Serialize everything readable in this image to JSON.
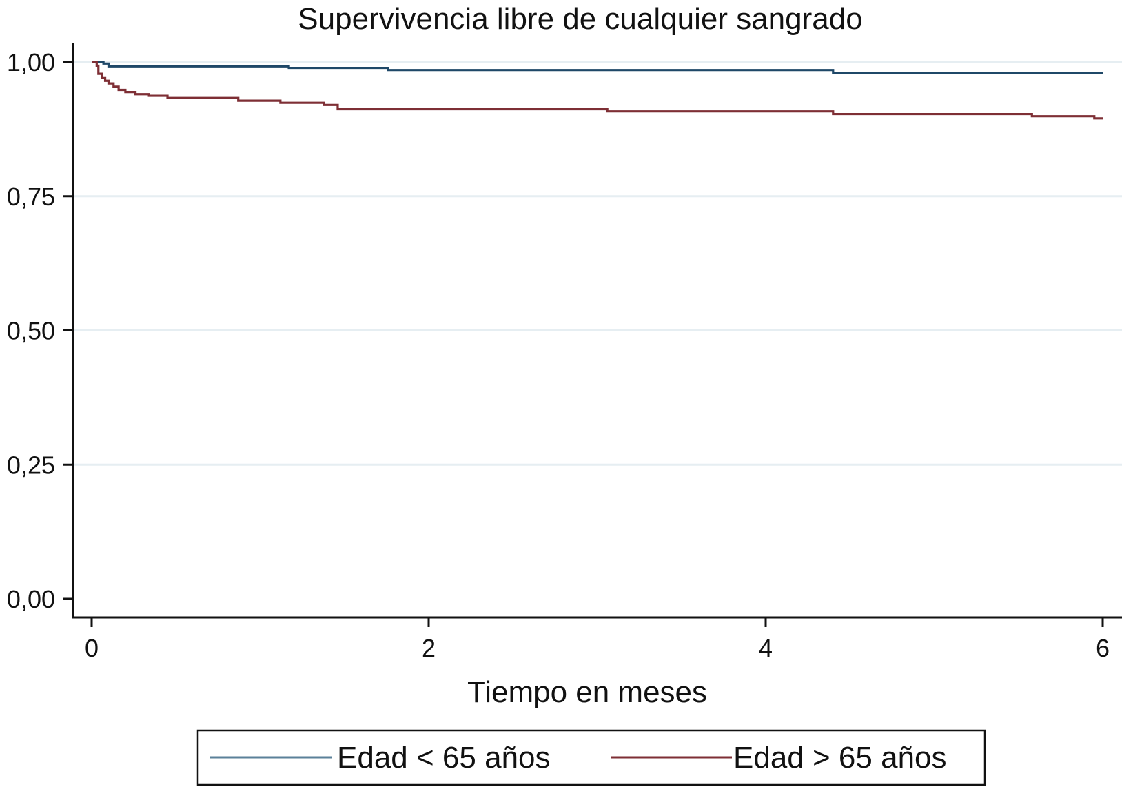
{
  "chart_data": {
    "type": "line",
    "title": "Supervivencia libre de cualquier sangrado",
    "xlabel": "Tiempo en meses",
    "ylabel": "",
    "xlim": [
      0,
      6
    ],
    "ylim": [
      0,
      1
    ],
    "x_ticks": [
      {
        "value": 0,
        "label": "0"
      },
      {
        "value": 2,
        "label": "2"
      },
      {
        "value": 4,
        "label": "4"
      },
      {
        "value": 6,
        "label": "6"
      }
    ],
    "y_ticks": [
      {
        "value": 0,
        "label": "0,00"
      },
      {
        "value": 0.25,
        "label": "0,25"
      },
      {
        "value": 0.5,
        "label": "0,50"
      },
      {
        "value": 0.75,
        "label": "0,75"
      },
      {
        "value": 1,
        "label": "1,00"
      }
    ],
    "grid": "horizontal",
    "legend_position": "bottom",
    "step": true,
    "series": [
      {
        "name": "Edad < 65 años",
        "color": "#1f4868",
        "legend_color": "#5b8199",
        "x": [
          0,
          0.07,
          0.1,
          1.17,
          1.76,
          4.4,
          6.0
        ],
        "y": [
          1.0,
          0.997,
          0.992,
          0.989,
          0.985,
          0.98,
          0.98
        ]
      },
      {
        "name": "Edad > 65 años",
        "color": "#7e2f35",
        "legend_color": "#7e2f35",
        "x": [
          0,
          0.03,
          0.04,
          0.06,
          0.08,
          0.1,
          0.13,
          0.16,
          0.2,
          0.26,
          0.34,
          0.45,
          0.87,
          1.12,
          1.38,
          1.46,
          3.06,
          4.4,
          5.58,
          5.95,
          6.0
        ],
        "y": [
          1.0,
          0.993,
          0.978,
          0.97,
          0.965,
          0.96,
          0.954,
          0.948,
          0.944,
          0.94,
          0.937,
          0.933,
          0.928,
          0.924,
          0.92,
          0.912,
          0.908,
          0.903,
          0.899,
          0.895,
          0.895
        ]
      }
    ]
  }
}
